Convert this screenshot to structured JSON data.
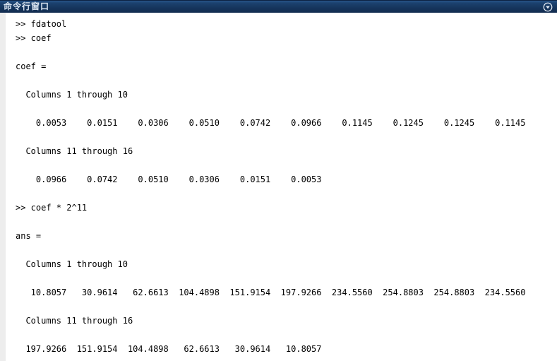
{
  "titlebar": {
    "title": "命令行窗口",
    "icon": "circle-triangle-down",
    "colors": {
      "background_top": "#28558a",
      "background_bottom": "#122c50",
      "title_text": "#dce6f2"
    }
  },
  "console": {
    "prompt": ">>",
    "text_color": "#000000",
    "gutter_color": "#ededed",
    "lines": [
      {
        "type": "command",
        "text": ">> fdatool"
      },
      {
        "type": "command",
        "text": ">> coef"
      },
      {
        "type": "blank",
        "text": ""
      },
      {
        "type": "output",
        "text": "coef ="
      },
      {
        "type": "blank",
        "text": ""
      },
      {
        "type": "output",
        "text": "  Columns 1 through 10"
      },
      {
        "type": "blank",
        "text": ""
      },
      {
        "type": "output",
        "text": "    0.0053    0.0151    0.0306    0.0510    0.0742    0.0966    0.1145    0.1245    0.1245    0.1145"
      },
      {
        "type": "blank",
        "text": ""
      },
      {
        "type": "output",
        "text": "  Columns 11 through 16"
      },
      {
        "type": "blank",
        "text": ""
      },
      {
        "type": "output",
        "text": "    0.0966    0.0742    0.0510    0.0306    0.0151    0.0053"
      },
      {
        "type": "blank",
        "text": ""
      },
      {
        "type": "command",
        "text": ">> coef * 2^11"
      },
      {
        "type": "blank",
        "text": ""
      },
      {
        "type": "output",
        "text": "ans ="
      },
      {
        "type": "blank",
        "text": ""
      },
      {
        "type": "output",
        "text": "  Columns 1 through 10"
      },
      {
        "type": "blank",
        "text": ""
      },
      {
        "type": "output",
        "text": "   10.8057   30.9614   62.6613  104.4898  151.9154  197.9266  234.5560  254.8803  254.8803  234.5560"
      },
      {
        "type": "blank",
        "text": ""
      },
      {
        "type": "output",
        "text": "  Columns 11 through 16"
      },
      {
        "type": "blank",
        "text": ""
      },
      {
        "type": "output",
        "text": "  197.9266  151.9154  104.4898   62.6613   30.9614   10.8057"
      }
    ],
    "variables": {
      "coef": [
        0.0053,
        0.0151,
        0.0306,
        0.051,
        0.0742,
        0.0966,
        0.1145,
        0.1245,
        0.1245,
        0.1145,
        0.0966,
        0.0742,
        0.051,
        0.0306,
        0.0151,
        0.0053
      ],
      "ans": [
        10.8057,
        30.9614,
        62.6613,
        104.4898,
        151.9154,
        197.9266,
        234.556,
        254.8803,
        254.8803,
        234.556,
        197.9266,
        151.9154,
        104.4898,
        62.6613,
        30.9614,
        10.8057
      ]
    }
  }
}
